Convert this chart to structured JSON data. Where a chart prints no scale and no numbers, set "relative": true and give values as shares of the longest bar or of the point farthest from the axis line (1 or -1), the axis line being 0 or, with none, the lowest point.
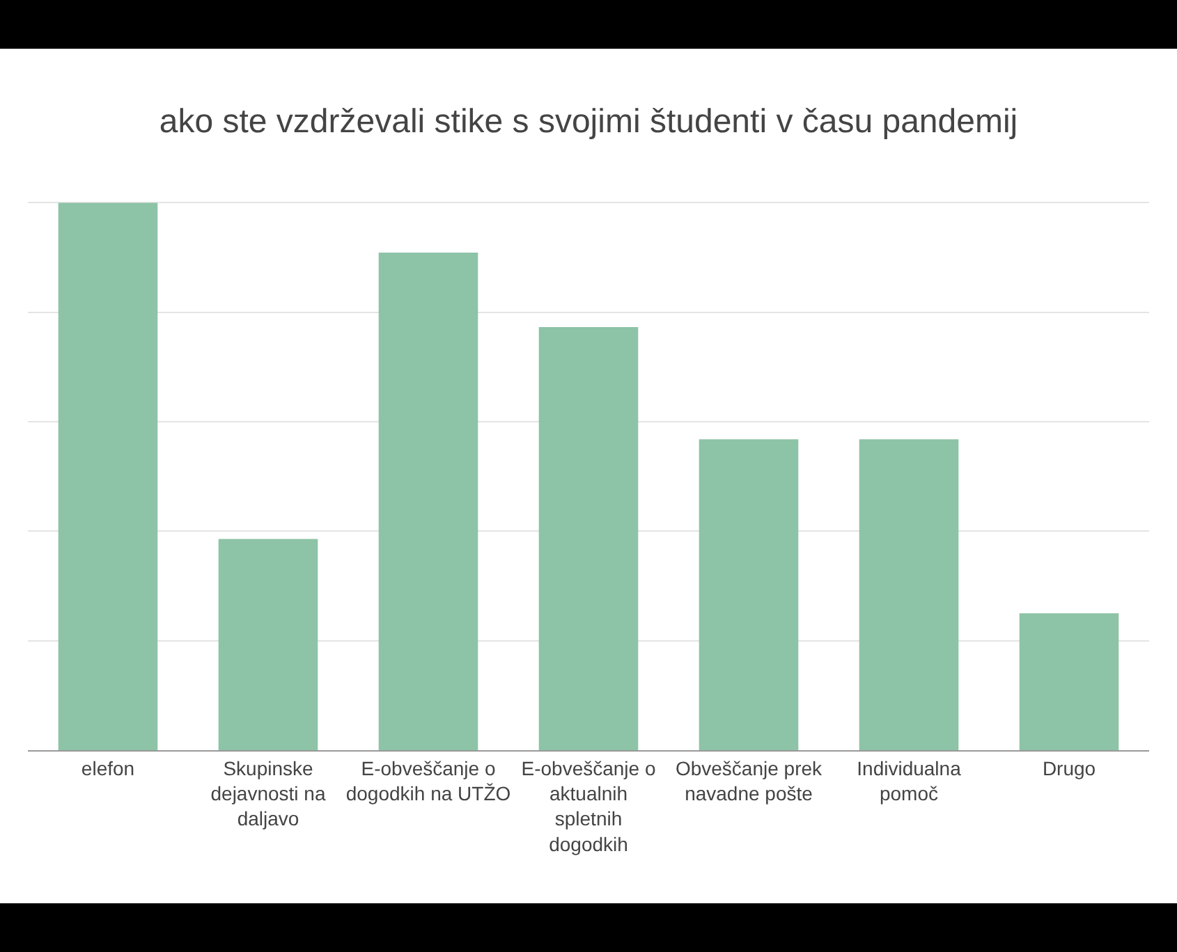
{
  "chart_data": {
    "type": "bar",
    "title": "ako ste vzdrževali stike s svojimi študenti v času pandemij",
    "categories": [
      "elefon",
      "Skupinske dejavnosti na daljavo",
      "E-obveščanje o dogodkih na UTŽO",
      "E-obveščanje o aktualnih spletnih dogodkih",
      "Obveščanje prek navadne pošte",
      "Individualna pomoč",
      "Drugo"
    ],
    "values": [
      1,
      0.386,
      0.909,
      0.773,
      0.568,
      0.568,
      0.25
    ],
    "color": "#8dc3a6",
    "relative": true,
    "grid": "y"
  }
}
